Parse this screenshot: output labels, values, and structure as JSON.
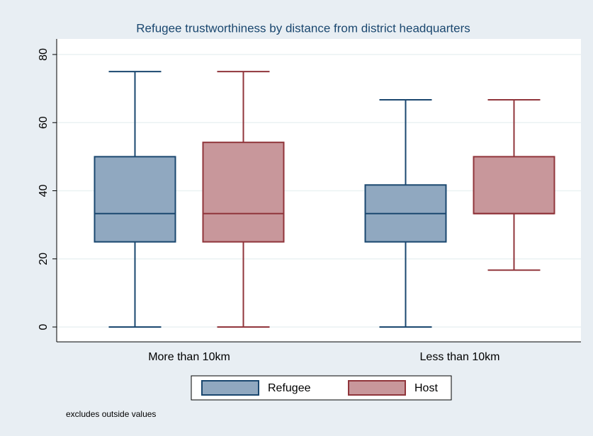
{
  "chart_data": {
    "type": "box",
    "title": "Refugee trustworthiness  by distance from district headquarters",
    "categories": [
      "More than 10km",
      "Less than 10km"
    ],
    "series": [
      {
        "name": "Refugee",
        "color": "#90a8c0",
        "edgecolor": "#1a476f",
        "values": [
          {
            "min": 0,
            "q1": 25,
            "median": 33.3,
            "q3": 50,
            "max": 75
          },
          {
            "min": 0,
            "q1": 25,
            "median": 33.3,
            "q3": 41.7,
            "max": 66.7
          }
        ]
      },
      {
        "name": "Host",
        "color": "#c8979b",
        "edgecolor": "#90353b",
        "values": [
          {
            "min": 0,
            "q1": 25,
            "median": 33.3,
            "q3": 54.2,
            "max": 75
          },
          {
            "min": 16.7,
            "q1": 33.3,
            "median": 33.3,
            "q3": 50,
            "max": 66.7
          }
        ]
      }
    ],
    "ylim": [
      0,
      80
    ],
    "yticks": [
      0,
      20,
      40,
      60,
      80
    ],
    "grid": true,
    "legend": "bottom",
    "note": "excludes outside values"
  }
}
